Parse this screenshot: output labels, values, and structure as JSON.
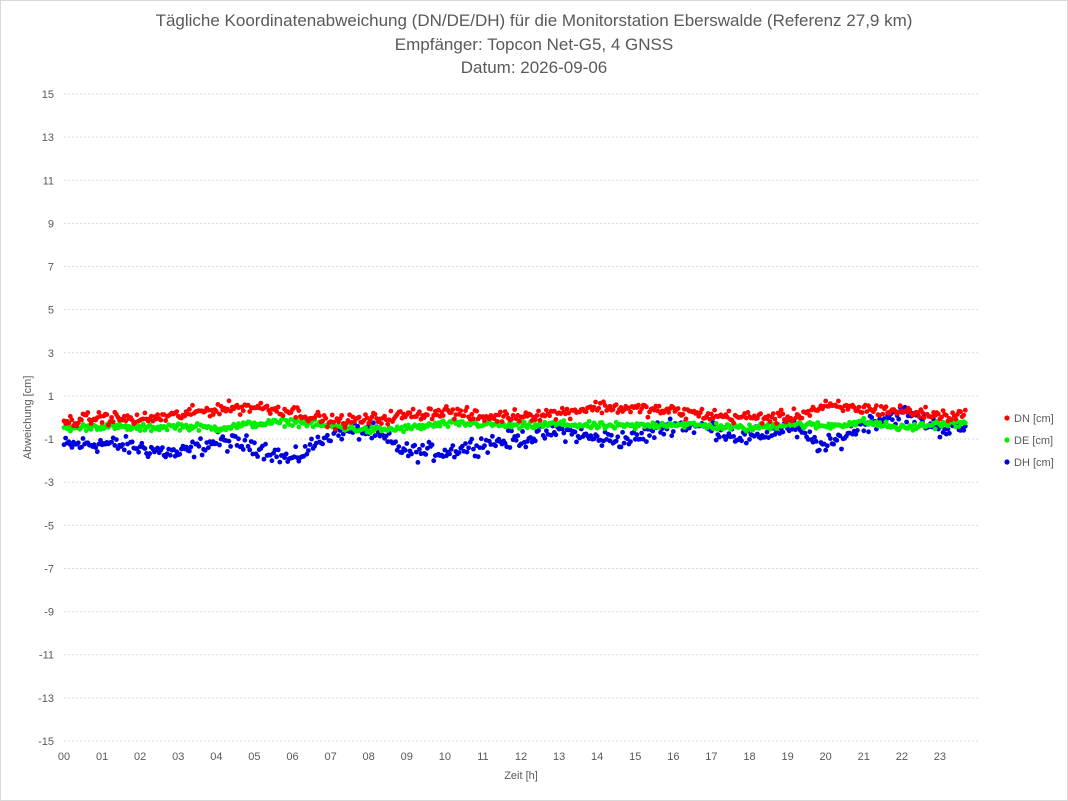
{
  "chart_data": {
    "type": "scatter",
    "title": "Tägliche Koordinatenabweichung (DN/DE/DH) für die Monitorstation Eberswalde (Referenz 27,9 km)",
    "subtitle": "Empfänger: Topcon Net-G5, 4 GNSS",
    "date_line": "Datum: 2026-09-06",
    "xlabel": "Zeit [h]",
    "ylabel": "Abweichung [cm]",
    "xlim": [
      0,
      24
    ],
    "ylim": [
      -15,
      15
    ],
    "x_ticks": [
      "00",
      "01",
      "02",
      "03",
      "04",
      "05",
      "06",
      "07",
      "08",
      "09",
      "10",
      "11",
      "12",
      "13",
      "14",
      "15",
      "16",
      "17",
      "18",
      "19",
      "20",
      "21",
      "22",
      "23"
    ],
    "y_ticks": [
      "15",
      "13",
      "11",
      "9",
      "7",
      "5",
      "3",
      "1",
      "-1",
      "-3",
      "-5",
      "-7",
      "-9",
      "-11",
      "-13",
      "-15"
    ],
    "grid": true,
    "legend_position": "right",
    "samples_per_hour": 24,
    "series": [
      {
        "name": "DN [cm]",
        "color": "#ff0000",
        "hourly_mean": [
          -0.2,
          0.0,
          -0.1,
          0.1,
          0.4,
          0.5,
          0.3,
          -0.2,
          -0.1,
          0.1,
          0.3,
          0.0,
          0.1,
          0.2,
          0.5,
          0.4,
          0.3,
          0.1,
          0.0,
          0.0,
          0.5,
          0.4,
          0.3,
          0.1
        ],
        "spread": 0.35
      },
      {
        "name": "DE [cm]",
        "color": "#00ee00",
        "hourly_mean": [
          -0.5,
          -0.4,
          -0.5,
          -0.4,
          -0.5,
          -0.3,
          -0.2,
          -0.4,
          -0.6,
          -0.5,
          -0.3,
          -0.3,
          -0.4,
          -0.3,
          -0.4,
          -0.4,
          -0.3,
          -0.4,
          -0.5,
          -0.3,
          -0.4,
          -0.2,
          -0.5,
          -0.3
        ],
        "spread": 0.2
      },
      {
        "name": "DH [cm]",
        "color": "#0000dd",
        "hourly_mean": [
          -1.3,
          -1.2,
          -1.4,
          -1.7,
          -1.1,
          -1.3,
          -2.0,
          -0.7,
          -0.6,
          -1.6,
          -1.6,
          -1.2,
          -1.0,
          -0.6,
          -1.0,
          -1.0,
          -0.3,
          -0.5,
          -1.0,
          -0.4,
          -1.4,
          -0.3,
          0.2,
          -0.5
        ],
        "spread": 0.5,
        "max": 1.5,
        "min": -2.9
      }
    ]
  }
}
